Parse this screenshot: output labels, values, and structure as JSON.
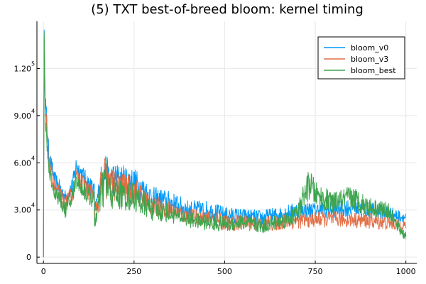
{
  "chart_data": {
    "type": "line",
    "title": "(5) TXT best-of-breed bloom: kernel timing",
    "xlabel": "",
    "ylabel": "",
    "xlim": [
      -18,
      1030
    ],
    "ylim": [
      -4000,
      150000
    ],
    "grid": true,
    "legend_position": "top-right",
    "x_ticks": [
      {
        "value": 0,
        "label": "0"
      },
      {
        "value": 250,
        "label": "250"
      },
      {
        "value": 500,
        "label": "500"
      },
      {
        "value": 750,
        "label": "750"
      },
      {
        "value": 1000,
        "label": "1000"
      }
    ],
    "y_ticks": [
      {
        "value": 0,
        "mantissa": "0",
        "exponent": ""
      },
      {
        "value": 30000,
        "mantissa": "3.0",
        "exponent": "4"
      },
      {
        "value": 60000,
        "mantissa": "6.0",
        "exponent": "4"
      },
      {
        "value": 90000,
        "mantissa": "9.0",
        "exponent": "4"
      },
      {
        "value": 120000,
        "mantissa": "1.2",
        "exponent": "5"
      }
    ],
    "series": [
      {
        "name": "bloom_v0",
        "color": "#009af9",
        "x": [
          0,
          2,
          5,
          15,
          30,
          50,
          60,
          80,
          90,
          100,
          120,
          140,
          141,
          160,
          170,
          180,
          200,
          250,
          300,
          350,
          400,
          450,
          500,
          550,
          600,
          650,
          700,
          750,
          800,
          850,
          900,
          950,
          1000
        ],
        "y": [
          0,
          140000,
          100000,
          65000,
          50000,
          42000,
          38000,
          45000,
          58000,
          55000,
          48000,
          42000,
          28000,
          50000,
          55000,
          50000,
          50000,
          48000,
          38000,
          35000,
          30000,
          30000,
          27000,
          26000,
          25000,
          27000,
          30000,
          30000,
          30000,
          32000,
          30000,
          28000,
          25000
        ],
        "spread": [
          0,
          5000,
          8000,
          6000,
          5000,
          5000,
          5000,
          6000,
          6000,
          6000,
          6000,
          6000,
          4000,
          10000,
          14000,
          10000,
          10000,
          9000,
          7000,
          7000,
          6000,
          6000,
          5000,
          5000,
          5000,
          5000,
          5000,
          5000,
          5000,
          6000,
          5000,
          5000,
          3000
        ]
      },
      {
        "name": "bloom_v3",
        "color": "#e26f46",
        "x": [
          0,
          2,
          5,
          15,
          30,
          50,
          60,
          80,
          90,
          100,
          120,
          140,
          141,
          160,
          170,
          180,
          200,
          250,
          300,
          350,
          400,
          450,
          500,
          550,
          600,
          650,
          700,
          750,
          800,
          850,
          900,
          950,
          1000
        ],
        "y": [
          0,
          135000,
          95000,
          60000,
          45000,
          38000,
          33000,
          40000,
          52000,
          50000,
          43000,
          38000,
          25000,
          45000,
          52000,
          45000,
          45000,
          42000,
          33000,
          30000,
          26000,
          25000,
          22000,
          22000,
          21000,
          22000,
          23000,
          24000,
          24000,
          24000,
          23000,
          22000,
          20000
        ],
        "spread": [
          0,
          5000,
          8000,
          6000,
          5000,
          5000,
          5000,
          6000,
          6000,
          6000,
          6000,
          6000,
          4000,
          12000,
          16000,
          11000,
          10000,
          9000,
          7000,
          6000,
          5000,
          5000,
          5000,
          5000,
          5000,
          5000,
          5000,
          5000,
          5000,
          5000,
          5000,
          5000,
          3000
        ]
      },
      {
        "name": "bloom_best",
        "color": "#3da44d",
        "x": [
          0,
          2,
          5,
          15,
          30,
          50,
          60,
          80,
          90,
          100,
          120,
          140,
          141,
          160,
          170,
          180,
          200,
          250,
          300,
          350,
          400,
          450,
          500,
          550,
          600,
          650,
          700,
          720,
          735,
          750,
          800,
          850,
          900,
          950,
          975,
          1000
        ],
        "y": [
          0,
          142000,
          90000,
          55000,
          42000,
          35000,
          30000,
          38000,
          50000,
          46000,
          40000,
          36000,
          22000,
          40000,
          50000,
          42000,
          40000,
          38000,
          30000,
          28000,
          24000,
          22000,
          21000,
          22000,
          20000,
          22000,
          27000,
          40000,
          47000,
          40000,
          34000,
          38000,
          32000,
          30000,
          20000,
          13000
        ],
        "spread": [
          0,
          5000,
          8000,
          6000,
          5000,
          5000,
          5000,
          6000,
          6000,
          6000,
          6000,
          6000,
          4000,
          12000,
          18000,
          12000,
          10000,
          9000,
          7000,
          6000,
          5000,
          5000,
          5000,
          5000,
          5000,
          5000,
          6000,
          8000,
          10000,
          8000,
          7000,
          8000,
          6000,
          5000,
          4000,
          3000
        ]
      }
    ]
  }
}
